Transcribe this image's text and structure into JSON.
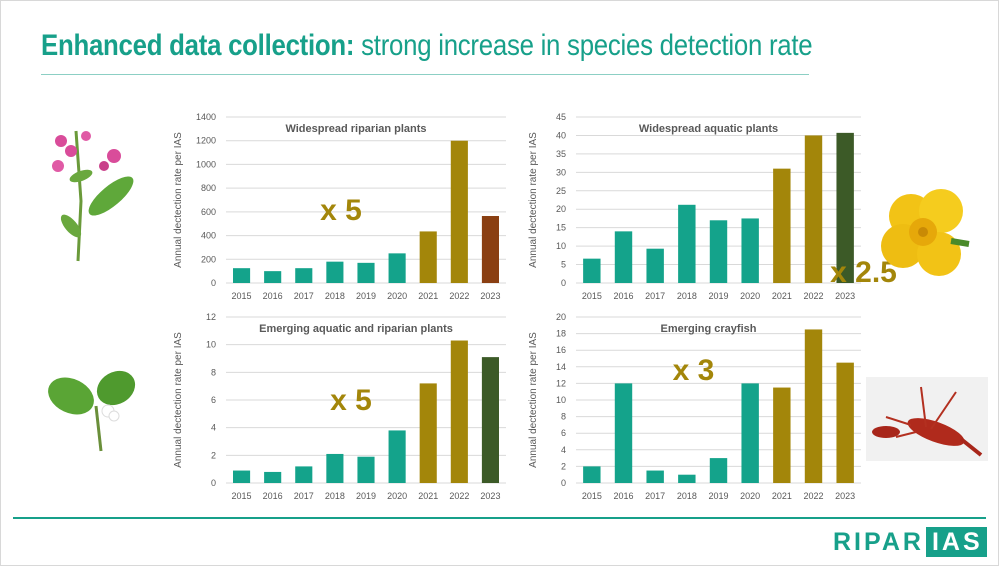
{
  "title": {
    "bold": "Enhanced data collection:",
    "rest": " strong increase in species detection rate"
  },
  "logo": {
    "part1": "RIPAR",
    "part2": "IAS"
  },
  "colors": {
    "teal": "#14a38b",
    "olive": "#a3860a",
    "brown": "#8a3f12",
    "darkgreen": "#3c5a27",
    "accent": "#17a08a"
  },
  "chart_data": [
    {
      "type": "bar",
      "title": "Widespread riparian plants",
      "ylabel": "Annual dectection rate per IAS",
      "categories": [
        "2015",
        "2016",
        "2017",
        "2018",
        "2019",
        "2020",
        "2021",
        "2022",
        "2023"
      ],
      "values": [
        125,
        100,
        125,
        180,
        170,
        250,
        435,
        1200,
        565
      ],
      "bar_colors": [
        "#14a38b",
        "#14a38b",
        "#14a38b",
        "#14a38b",
        "#14a38b",
        "#14a38b",
        "#a3860a",
        "#a3860a",
        "#8a3f12"
      ],
      "yticks": [
        0,
        200,
        400,
        600,
        800,
        1000,
        1200,
        1400
      ],
      "ylim": [
        0,
        1400
      ],
      "grid": true,
      "annotation": "x 5"
    },
    {
      "type": "bar",
      "title": "Widespread aquatic plants",
      "ylabel": "Annual dectection rate per IAS",
      "categories": [
        "2015",
        "2016",
        "2017",
        "2018",
        "2019",
        "2020",
        "2021",
        "2022",
        "2023"
      ],
      "values": [
        6.6,
        14,
        9.3,
        21.2,
        17,
        17.5,
        31,
        40,
        40.7
      ],
      "bar_colors": [
        "#14a38b",
        "#14a38b",
        "#14a38b",
        "#14a38b",
        "#14a38b",
        "#14a38b",
        "#a3860a",
        "#a3860a",
        "#3c5a27"
      ],
      "yticks": [
        0,
        5,
        10,
        15,
        20,
        25,
        30,
        35,
        40,
        45
      ],
      "ylim": [
        0,
        45
      ],
      "grid": true,
      "annotation": "x 2.5"
    },
    {
      "type": "bar",
      "title": "Emerging aquatic and riparian plants",
      "ylabel": "Annual dectection rate per IAS",
      "categories": [
        "2015",
        "2016",
        "2017",
        "2018",
        "2019",
        "2020",
        "2021",
        "2022",
        "2023"
      ],
      "values": [
        0.9,
        0.8,
        1.2,
        2.1,
        1.9,
        3.8,
        7.2,
        10.3,
        9.1
      ],
      "bar_colors": [
        "#14a38b",
        "#14a38b",
        "#14a38b",
        "#14a38b",
        "#14a38b",
        "#14a38b",
        "#a3860a",
        "#a3860a",
        "#3c5a27"
      ],
      "yticks": [
        0,
        2,
        4,
        6,
        8,
        10,
        12
      ],
      "ylim": [
        0,
        12
      ],
      "grid": true,
      "annotation": "x 5"
    },
    {
      "type": "bar",
      "title": "Emerging crayfish",
      "ylabel": "Annual dectection rate per IAS",
      "categories": [
        "2015",
        "2016",
        "2017",
        "2018",
        "2019",
        "2020",
        "2021",
        "2022",
        "2023"
      ],
      "values": [
        2,
        12,
        1.5,
        1,
        3,
        12,
        11.5,
        18.5,
        14.5
      ],
      "bar_colors": [
        "#14a38b",
        "#14a38b",
        "#14a38b",
        "#14a38b",
        "#14a38b",
        "#14a38b",
        "#a3860a",
        "#a3860a",
        "#a3860a"
      ],
      "yticks": [
        0,
        2,
        4,
        6,
        8,
        10,
        12,
        14,
        16,
        18,
        20
      ],
      "ylim": [
        0,
        20
      ],
      "grid": true,
      "annotation": "x 3"
    }
  ]
}
